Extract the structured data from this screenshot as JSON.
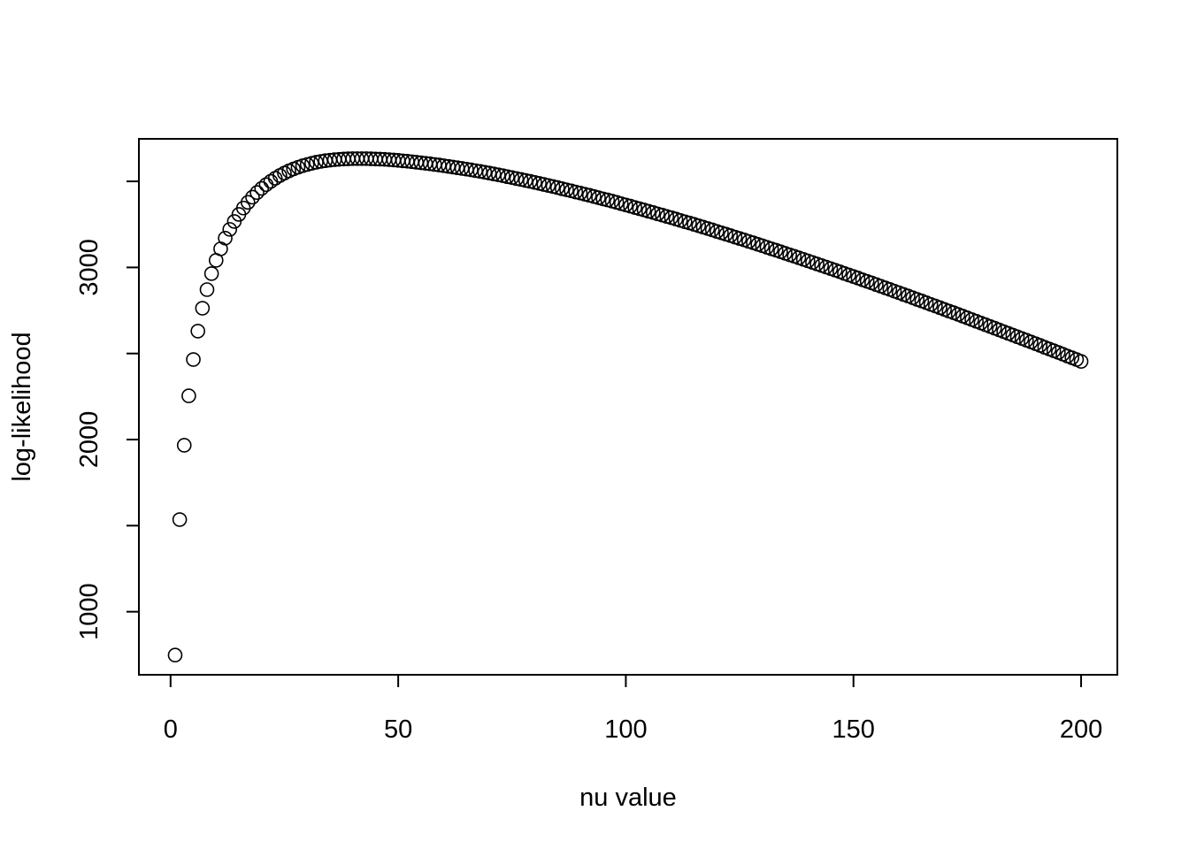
{
  "chart_data": {
    "type": "scatter",
    "x_label": "nu value",
    "y_label": "log-likelihood",
    "xlim": [
      -6.96,
      207.96
    ],
    "ylim": [
      633.6,
      3747
    ],
    "xticks": [
      0,
      50,
      100,
      150,
      200
    ],
    "yticks": [
      1000,
      {
        "value": 1500,
        "label": null
      },
      2000,
      {
        "value": 2500,
        "label": null
      },
      3000,
      {
        "value": 3500,
        "label": null
      }
    ],
    "color": "#000000",
    "x": [
      1,
      2,
      3,
      4,
      5,
      6,
      7,
      8,
      9,
      10,
      11,
      12,
      13,
      14,
      15,
      16,
      17,
      18,
      19,
      20,
      21,
      22,
      23,
      24,
      25,
      26,
      27,
      28,
      29,
      30,
      31,
      32,
      33,
      34,
      35,
      36,
      37,
      38,
      39,
      40,
      41,
      42,
      43,
      44,
      45,
      46,
      47,
      48,
      49,
      50,
      51,
      52,
      53,
      54,
      55,
      56,
      57,
      58,
      59,
      60,
      61,
      62,
      63,
      64,
      65,
      66,
      67,
      68,
      69,
      70,
      71,
      72,
      73,
      74,
      75,
      76,
      77,
      78,
      79,
      80,
      81,
      82,
      83,
      84,
      85,
      86,
      87,
      88,
      89,
      90,
      91,
      92,
      93,
      94,
      95,
      96,
      97,
      98,
      99,
      100,
      101,
      102,
      103,
      104,
      105,
      106,
      107,
      108,
      109,
      110,
      111,
      112,
      113,
      114,
      115,
      116,
      117,
      118,
      119,
      120,
      121,
      122,
      123,
      124,
      125,
      126,
      127,
      128,
      129,
      130,
      131,
      132,
      133,
      134,
      135,
      136,
      137,
      138,
      139,
      140,
      141,
      142,
      143,
      144,
      145,
      146,
      147,
      148,
      149,
      150,
      151,
      152,
      153,
      154,
      155,
      156,
      157,
      158,
      159,
      160,
      161,
      162,
      163,
      164,
      165,
      166,
      167,
      168,
      169,
      170,
      171,
      172,
      173,
      174,
      175,
      176,
      177,
      178,
      179,
      180,
      181,
      182,
      183,
      184,
      185,
      186,
      187,
      188,
      189,
      190,
      191,
      192,
      193,
      194,
      195,
      196,
      197,
      198,
      199,
      200
    ],
    "values": [
      748,
      1535,
      1967,
      2254,
      2465,
      2630,
      2763,
      2871,
      2964,
      3041,
      3108,
      3170,
      3221,
      3267,
      3308,
      3345,
      3378,
      3408,
      3435,
      3459,
      3481,
      3500,
      3518,
      3534,
      3548,
      3561,
      3572,
      3582,
      3591,
      3598,
      3605,
      3611,
      3616,
      3620,
      3623,
      3626,
      3628,
      3630,
      3631,
      3632,
      3632,
      3632,
      3632,
      3631,
      3630,
      3629,
      3628,
      3626,
      3624,
      3622,
      3619,
      3617,
      3614,
      3611,
      3608,
      3605,
      3602,
      3598,
      3595,
      3591,
      3587,
      3583,
      3579,
      3575,
      3571,
      3567,
      3562,
      3558,
      3553,
      3548,
      3543,
      3538,
      3533,
      3527,
      3522,
      3516,
      3511,
      3505,
      3500,
      3494,
      3488,
      3482,
      3476,
      3470,
      3464,
      3457,
      3451,
      3445,
      3438,
      3432,
      3425,
      3419,
      3412,
      3405,
      3398,
      3392,
      3385,
      3378,
      3370,
      3363,
      3356,
      3348,
      3341,
      3334,
      3326,
      3319,
      3311,
      3304,
      3296,
      3289,
      3281,
      3273,
      3265,
      3258,
      3250,
      3242,
      3234,
      3226,
      3218,
      3209,
      3201,
      3193,
      3185,
      3176,
      3168,
      3160,
      3151,
      3143,
      3134,
      3126,
      3117,
      3108,
      3100,
      3091,
      3082,
      3073,
      3065,
      3056,
      3047,
      3038,
      3029,
      3020,
      3011,
      3002,
      2993,
      2984,
      2975,
      2965,
      2956,
      2947,
      2938,
      2928,
      2919,
      2910,
      2900,
      2891,
      2881,
      2872,
      2862,
      2853,
      2843,
      2834,
      2824,
      2814,
      2805,
      2795,
      2785,
      2776,
      2766,
      2756,
      2746,
      2737,
      2727,
      2717,
      2707,
      2697,
      2687,
      2677,
      2667,
      2657,
      2647,
      2637,
      2627,
      2617,
      2607,
      2597,
      2587,
      2577,
      2567,
      2557,
      2547,
      2536,
      2526,
      2516,
      2506,
      2496,
      2485,
      2475,
      2465,
      2454
    ]
  }
}
